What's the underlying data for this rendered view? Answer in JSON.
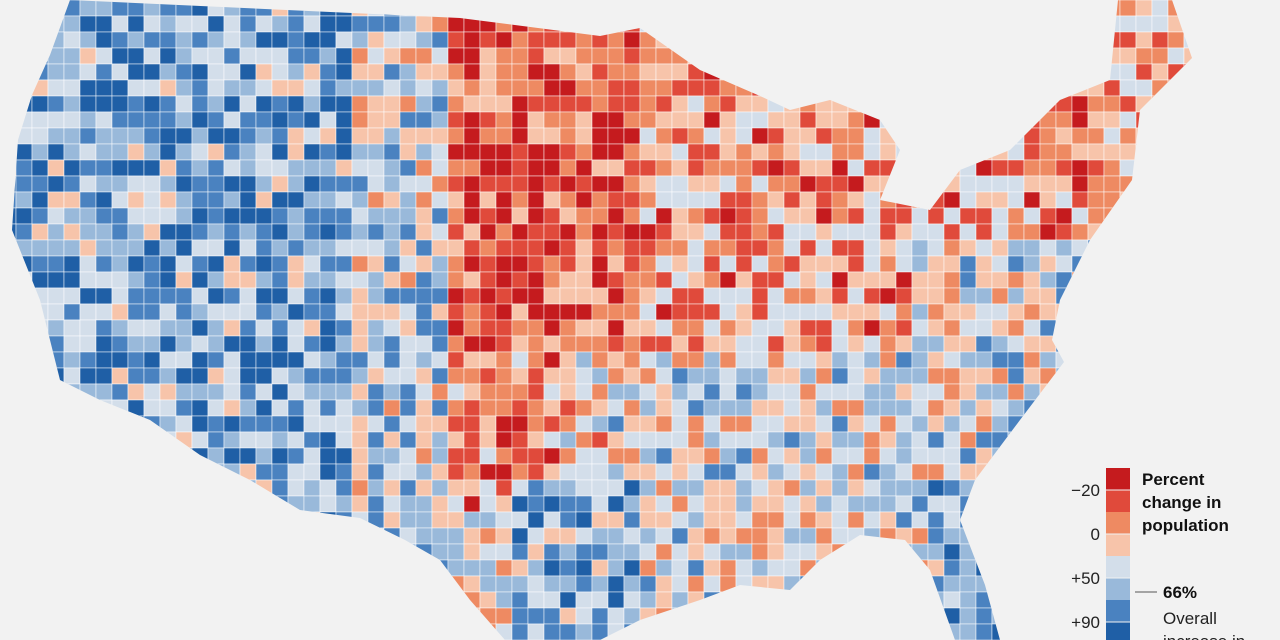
{
  "legend": {
    "title": [
      "Percent",
      "change in",
      "population"
    ],
    "colors": [
      "#c51b1e",
      "#e04a3b",
      "#ee8a62",
      "#f7c4aa",
      "#d3deea",
      "#99b9da",
      "#4a82c0",
      "#1f5fa6"
    ],
    "ticks": [
      "−20",
      "0",
      "+50",
      "+90"
    ],
    "marker": {
      "label": "66%",
      "text": [
        "Overall",
        "increase in"
      ]
    }
  }
}
